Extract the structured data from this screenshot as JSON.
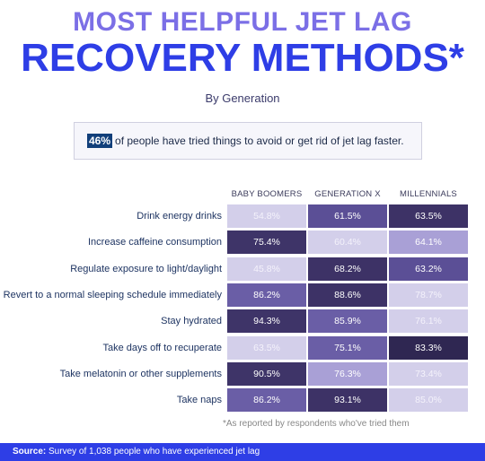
{
  "title_line1": "MOST HELPFUL JET LAG",
  "title_line2": "RECOVERY METHODS*",
  "subtitle": "By Generation",
  "callout": {
    "percent": "46%",
    "text": "of people have tried things to avoid or get rid of jet lag faster."
  },
  "footnote": "*As reported by respondents who've tried them",
  "source": {
    "label": "Source:",
    "text": "Survey of 1,038 people who have experienced jet lag"
  },
  "colors": {
    "title_light": "#7b6fe6",
    "title_bold": "#2e3ee6",
    "callout_highlight": "#113f7a",
    "source_bar": "#2e3ee6"
  },
  "chart_data": {
    "type": "heatmap",
    "columns": [
      "BABY BOOMERS",
      "GENERATION X",
      "MILLENNIALS"
    ],
    "rows": [
      "Drink energy drinks",
      "Increase caffeine consumption",
      "Regulate exposure to light/daylight",
      "Revert to a normal sleeping schedule immediately",
      "Stay hydrated",
      "Take days off to recuperate",
      "Take melatonin or other supplements",
      "Take naps"
    ],
    "values": [
      [
        54.8,
        61.5,
        63.5
      ],
      [
        75.4,
        60.4,
        64.1
      ],
      [
        45.8,
        68.2,
        63.2
      ],
      [
        86.2,
        88.6,
        78.7
      ],
      [
        94.3,
        85.9,
        76.1
      ],
      [
        63.5,
        75.1,
        83.3
      ],
      [
        90.5,
        76.3,
        73.4
      ],
      [
        86.2,
        93.1,
        85.0
      ]
    ],
    "labels": [
      [
        "54.8%",
        "61.5%",
        "63.5%"
      ],
      [
        "75.4%",
        "60.4%",
        "64.1%"
      ],
      [
        "45.8%",
        "68.2%",
        "63.2%"
      ],
      [
        "86.2%",
        "88.6%",
        "78.7%"
      ],
      [
        "94.3%",
        "85.9%",
        "76.1%"
      ],
      [
        "63.5%",
        "75.1%",
        "83.3%"
      ],
      [
        "90.5%",
        "76.3%",
        "73.4%"
      ],
      [
        "86.2%",
        "93.1%",
        "85.0%"
      ]
    ],
    "cell_colors": [
      [
        "#d3cfea",
        "#5b4f96",
        "#3d3266"
      ],
      [
        "#3e3468",
        "#d3cfea",
        "#a9a0d6"
      ],
      [
        "#d3cfea",
        "#3d3266",
        "#5b4f96"
      ],
      [
        "#6a5ea6",
        "#3d3266",
        "#d3cfea"
      ],
      [
        "#3e3468",
        "#6a5ea6",
        "#d3cfea"
      ],
      [
        "#d3cfea",
        "#6a5ea6",
        "#2f2752"
      ],
      [
        "#3e3468",
        "#a9a0d6",
        "#d3cfea"
      ],
      [
        "#6a5ea6",
        "#3d3266",
        "#d3cfea"
      ]
    ]
  }
}
